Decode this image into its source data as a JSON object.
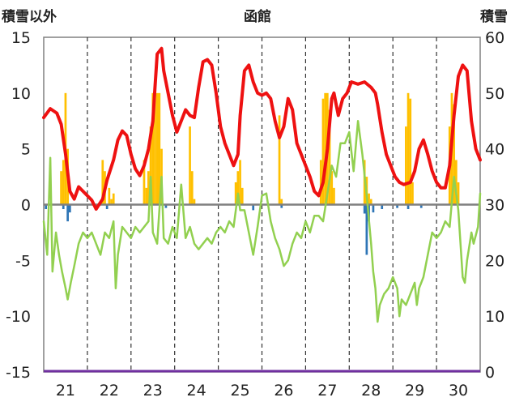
{
  "chart_data": {
    "type": "bar",
    "title": "函館",
    "left_axis": {
      "label": "積雪以外",
      "ylim": [
        -15,
        15
      ],
      "ticks": [
        15,
        10,
        5,
        0,
        -5,
        -10,
        -15
      ]
    },
    "right_axis": {
      "label": "積雪",
      "ylim": [
        0,
        60
      ],
      "ticks": [
        60,
        50,
        40,
        30,
        20,
        10,
        0
      ]
    },
    "categories": [
      "21",
      "22",
      "23",
      "24",
      "25",
      "26",
      "27",
      "28",
      "29",
      "30"
    ],
    "grid": "vertical dashed",
    "colors": {
      "red_line": "#ee1111",
      "green_line": "#92d050",
      "orange_bars": "#ffc000",
      "blue_bars": "#2e75b6",
      "zero_line": "#7f7f7f",
      "bottom_line": "#7030a0"
    },
    "series": [
      {
        "type": "line",
        "axis": "left",
        "color": "#ee1111",
        "points": [
          [
            20.5,
            7.8
          ],
          [
            20.65,
            8.6
          ],
          [
            20.8,
            8.2
          ],
          [
            20.9,
            7.2
          ],
          [
            21.0,
            4.5
          ],
          [
            21.1,
            1.2
          ],
          [
            21.2,
            0.5
          ],
          [
            21.3,
            1.6
          ],
          [
            21.4,
            1.2
          ],
          [
            21.5,
            0.8
          ],
          [
            21.6,
            0.4
          ],
          [
            21.7,
            -0.4
          ],
          [
            21.85,
            0.5
          ],
          [
            21.95,
            2.2
          ],
          [
            22.1,
            4.0
          ],
          [
            22.2,
            5.8
          ],
          [
            22.3,
            6.6
          ],
          [
            22.4,
            6.2
          ],
          [
            22.5,
            4.5
          ],
          [
            22.6,
            3.2
          ],
          [
            22.7,
            2.6
          ],
          [
            22.8,
            3.5
          ],
          [
            22.9,
            5.0
          ],
          [
            23.0,
            7.5
          ],
          [
            23.05,
            10.5
          ],
          [
            23.1,
            13.5
          ],
          [
            23.2,
            14.0
          ],
          [
            23.25,
            12.0
          ],
          [
            23.35,
            10.0
          ],
          [
            23.45,
            8.0
          ],
          [
            23.55,
            6.5
          ],
          [
            23.65,
            7.5
          ],
          [
            23.75,
            8.5
          ],
          [
            23.85,
            8.0
          ],
          [
            23.95,
            7.8
          ],
          [
            24.05,
            10.5
          ],
          [
            24.15,
            12.8
          ],
          [
            24.25,
            13.0
          ],
          [
            24.35,
            12.5
          ],
          [
            24.45,
            10.0
          ],
          [
            24.55,
            7.0
          ],
          [
            24.65,
            5.5
          ],
          [
            24.75,
            4.5
          ],
          [
            24.85,
            3.5
          ],
          [
            24.95,
            4.5
          ],
          [
            25.0,
            8.0
          ],
          [
            25.1,
            12.0
          ],
          [
            25.2,
            12.5
          ],
          [
            25.3,
            11.0
          ],
          [
            25.4,
            10.0
          ],
          [
            25.5,
            9.8
          ],
          [
            25.6,
            10.0
          ],
          [
            25.7,
            9.5
          ],
          [
            25.8,
            7.5
          ],
          [
            25.9,
            6.0
          ],
          [
            26.0,
            7.0
          ],
          [
            26.1,
            9.5
          ],
          [
            26.2,
            8.5
          ],
          [
            26.3,
            5.5
          ],
          [
            26.4,
            4.5
          ],
          [
            26.5,
            3.5
          ],
          [
            26.6,
            2.5
          ],
          [
            26.7,
            1.2
          ],
          [
            26.8,
            0.8
          ],
          [
            26.9,
            2.0
          ],
          [
            27.0,
            5.0
          ],
          [
            27.1,
            9.5
          ],
          [
            27.15,
            10.0
          ],
          [
            27.25,
            8.0
          ],
          [
            27.35,
            9.5
          ],
          [
            27.45,
            10.0
          ],
          [
            27.55,
            11.0
          ],
          [
            27.7,
            10.8
          ],
          [
            27.85,
            11.0
          ],
          [
            28.0,
            10.5
          ],
          [
            28.1,
            10.0
          ],
          [
            28.15,
            9.0
          ],
          [
            28.25,
            6.5
          ],
          [
            28.35,
            4.5
          ],
          [
            28.45,
            3.5
          ],
          [
            28.55,
            2.5
          ],
          [
            28.65,
            2.0
          ],
          [
            28.75,
            1.8
          ],
          [
            28.9,
            2.0
          ],
          [
            29.0,
            3.0
          ],
          [
            29.1,
            5.0
          ],
          [
            29.2,
            5.8
          ],
          [
            29.3,
            4.5
          ],
          [
            29.4,
            3.0
          ],
          [
            29.5,
            2.0
          ],
          [
            29.6,
            1.5
          ],
          [
            29.7,
            1.5
          ],
          [
            29.8,
            3.5
          ],
          [
            29.9,
            8.0
          ],
          [
            30.0,
            11.5
          ],
          [
            30.1,
            12.5
          ],
          [
            30.2,
            12.0
          ],
          [
            30.3,
            7.5
          ],
          [
            30.4,
            5.0
          ],
          [
            30.5,
            4.0
          ]
        ]
      },
      {
        "type": "line",
        "axis": "left",
        "color": "#92d050",
        "points": [
          [
            20.5,
            -1.5
          ],
          [
            20.58,
            -4.5
          ],
          [
            20.65,
            4.2
          ],
          [
            20.7,
            -6.0
          ],
          [
            20.78,
            -2.5
          ],
          [
            20.85,
            -4.5
          ],
          [
            20.92,
            -6.0
          ],
          [
            21.0,
            -7.5
          ],
          [
            21.05,
            -8.5
          ],
          [
            21.12,
            -7.0
          ],
          [
            21.2,
            -5.5
          ],
          [
            21.3,
            -3.5
          ],
          [
            21.4,
            -2.5
          ],
          [
            21.5,
            -3.0
          ],
          [
            21.6,
            -2.5
          ],
          [
            21.7,
            -3.5
          ],
          [
            21.8,
            -4.5
          ],
          [
            21.9,
            -2.5
          ],
          [
            22.0,
            -3.0
          ],
          [
            22.1,
            -1.5
          ],
          [
            22.15,
            -7.5
          ],
          [
            22.2,
            -4.5
          ],
          [
            22.3,
            -2.0
          ],
          [
            22.4,
            -2.5
          ],
          [
            22.5,
            -3.0
          ],
          [
            22.6,
            -2.0
          ],
          [
            22.7,
            -2.5
          ],
          [
            22.8,
            -2.0
          ],
          [
            22.9,
            -1.5
          ],
          [
            22.95,
            2.5
          ],
          [
            23.0,
            -2.5
          ],
          [
            23.1,
            -3.5
          ],
          [
            23.2,
            2.5
          ],
          [
            23.25,
            -3.0
          ],
          [
            23.35,
            -3.5
          ],
          [
            23.45,
            -2.0
          ],
          [
            23.55,
            -3.0
          ],
          [
            23.65,
            1.8
          ],
          [
            23.75,
            -3.0
          ],
          [
            23.85,
            -2.0
          ],
          [
            23.95,
            -3.5
          ],
          [
            24.05,
            -4.0
          ],
          [
            24.15,
            -3.5
          ],
          [
            24.25,
            -3.0
          ],
          [
            24.35,
            -3.5
          ],
          [
            24.45,
            -2.5
          ],
          [
            24.55,
            -2.0
          ],
          [
            24.65,
            -2.5
          ],
          [
            24.75,
            -1.5
          ],
          [
            24.85,
            -2.0
          ],
          [
            24.95,
            1.0
          ],
          [
            25.0,
            -0.5
          ],
          [
            25.1,
            -0.5
          ],
          [
            25.2,
            -2.5
          ],
          [
            25.3,
            -4.5
          ],
          [
            25.4,
            -2.0
          ],
          [
            25.5,
            0.8
          ],
          [
            25.6,
            1.0
          ],
          [
            25.7,
            -1.5
          ],
          [
            25.8,
            -3.0
          ],
          [
            25.9,
            -4.0
          ],
          [
            26.0,
            -5.5
          ],
          [
            26.1,
            -5.0
          ],
          [
            26.2,
            -3.5
          ],
          [
            26.3,
            -2.5
          ],
          [
            26.4,
            -3.0
          ],
          [
            26.5,
            -1.5
          ],
          [
            26.6,
            -2.5
          ],
          [
            26.7,
            -1.0
          ],
          [
            26.8,
            -1.0
          ],
          [
            26.9,
            -1.5
          ],
          [
            27.0,
            1.0
          ],
          [
            27.1,
            3.5
          ],
          [
            27.2,
            2.5
          ],
          [
            27.3,
            5.5
          ],
          [
            27.4,
            5.5
          ],
          [
            27.5,
            6.5
          ],
          [
            27.6,
            3.0
          ],
          [
            27.7,
            7.5
          ],
          [
            27.8,
            4.5
          ],
          [
            27.9,
            0.8
          ],
          [
            28.0,
            -3.5
          ],
          [
            28.05,
            -6.0
          ],
          [
            28.1,
            -7.5
          ],
          [
            28.15,
            -10.5
          ],
          [
            28.2,
            -9.0
          ],
          [
            28.3,
            -8.0
          ],
          [
            28.4,
            -7.5
          ],
          [
            28.5,
            -6.5
          ],
          [
            28.6,
            -7.5
          ],
          [
            28.65,
            -10.0
          ],
          [
            28.7,
            -8.5
          ],
          [
            28.8,
            -9.0
          ],
          [
            28.9,
            -8.0
          ],
          [
            29.0,
            -7.0
          ],
          [
            29.05,
            -9.0
          ],
          [
            29.1,
            -7.5
          ],
          [
            29.2,
            -6.5
          ],
          [
            29.3,
            -4.5
          ],
          [
            29.4,
            -2.5
          ],
          [
            29.5,
            -3.0
          ],
          [
            29.6,
            -2.5
          ],
          [
            29.7,
            -1.5
          ],
          [
            29.8,
            -2.0
          ],
          [
            29.9,
            2.5
          ],
          [
            30.0,
            -0.5
          ],
          [
            30.1,
            -6.5
          ],
          [
            30.15,
            -7.0
          ],
          [
            30.2,
            -5.0
          ],
          [
            30.3,
            -2.5
          ],
          [
            30.35,
            -3.5
          ],
          [
            30.45,
            -2.0
          ],
          [
            30.5,
            1.0
          ]
        ]
      },
      {
        "type": "bar",
        "axis": "right",
        "color": "#ffc000",
        "points": [
          [
            20.9,
            36
          ],
          [
            20.95,
            38
          ],
          [
            21.0,
            50
          ],
          [
            21.05,
            40
          ],
          [
            21.85,
            38
          ],
          [
            21.9,
            36
          ],
          [
            22.0,
            33
          ],
          [
            22.05,
            31
          ],
          [
            22.1,
            32
          ],
          [
            22.8,
            38
          ],
          [
            22.85,
            33
          ],
          [
            22.9,
            36
          ],
          [
            22.95,
            44
          ],
          [
            23.0,
            50
          ],
          [
            23.05,
            50
          ],
          [
            23.1,
            50
          ],
          [
            23.15,
            50
          ],
          [
            23.2,
            40
          ],
          [
            23.85,
            44
          ],
          [
            23.9,
            36
          ],
          [
            23.95,
            31
          ],
          [
            24.9,
            34
          ],
          [
            24.95,
            36
          ],
          [
            25.0,
            38
          ],
          [
            25.05,
            33
          ],
          [
            25.9,
            46
          ],
          [
            25.95,
            31
          ],
          [
            26.85,
            38
          ],
          [
            26.9,
            49
          ],
          [
            26.95,
            50
          ],
          [
            27.0,
            50
          ],
          [
            27.05,
            47
          ],
          [
            27.1,
            36
          ],
          [
            27.15,
            33
          ],
          [
            27.85,
            38
          ],
          [
            27.9,
            35
          ],
          [
            27.95,
            32
          ],
          [
            28.0,
            31
          ],
          [
            28.8,
            44
          ],
          [
            28.85,
            50
          ],
          [
            28.9,
            49
          ],
          [
            28.95,
            34
          ],
          [
            29.8,
            44
          ],
          [
            29.85,
            50
          ],
          [
            29.9,
            48
          ],
          [
            29.95,
            38
          ],
          [
            30.0,
            34
          ]
        ]
      },
      {
        "type": "bar",
        "axis": "left",
        "color": "#2e75b6",
        "points": [
          [
            20.55,
            -0.4
          ],
          [
            20.95,
            -0.4
          ],
          [
            21.05,
            -1.5
          ],
          [
            21.1,
            -0.7
          ],
          [
            21.7,
            -0.4
          ],
          [
            21.95,
            -0.4
          ],
          [
            23.3,
            -0.3
          ],
          [
            25.3,
            -0.5
          ],
          [
            25.95,
            -0.3
          ],
          [
            27.85,
            -0.8
          ],
          [
            27.9,
            -4.5
          ],
          [
            27.95,
            -1.5
          ],
          [
            28.05,
            -0.7
          ],
          [
            28.25,
            -0.4
          ],
          [
            28.6,
            -0.3
          ],
          [
            28.85,
            -0.4
          ],
          [
            29.15,
            -0.3
          ]
        ]
      }
    ]
  }
}
